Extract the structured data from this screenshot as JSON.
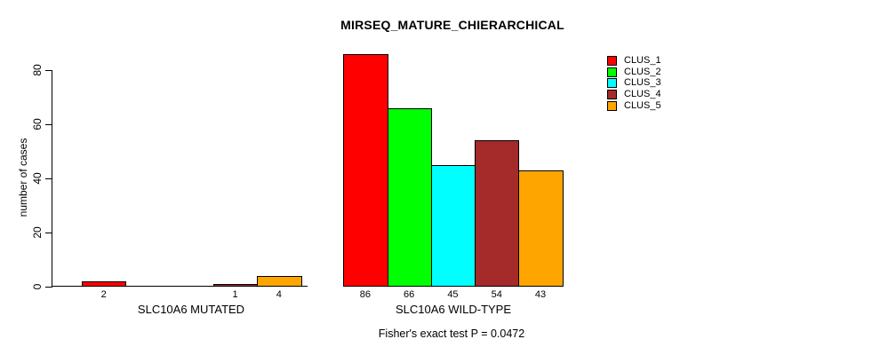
{
  "title": "MIRSEQ_MATURE_CHIERARCHICAL",
  "caption": "Fisher's exact test P = 0.0472",
  "chart_data": {
    "type": "bar",
    "title": "MIRSEQ_MATURE_CHIERARCHICAL",
    "xlabel": "",
    "ylabel": "number of cases",
    "yticks": [
      0,
      20,
      40,
      60,
      80
    ],
    "ylim": [
      0,
      86
    ],
    "grid": false,
    "legend_position": "top-right",
    "legend": [
      "CLUS_1",
      "CLUS_2",
      "CLUS_3",
      "CLUS_4",
      "CLUS_5"
    ],
    "series_colors": [
      "#FF0000",
      "#00FF00",
      "#00FFFF",
      "#A52A2A",
      "#FFA500"
    ],
    "groups": [
      {
        "label": "SLC10A6 MUTATED",
        "values": [
          2,
          0,
          0,
          1,
          4
        ]
      },
      {
        "label": "SLC10A6 WILD-TYPE",
        "values": [
          86,
          66,
          45,
          54,
          43
        ]
      }
    ],
    "annotation": "Fisher's exact test P = 0.0472"
  }
}
